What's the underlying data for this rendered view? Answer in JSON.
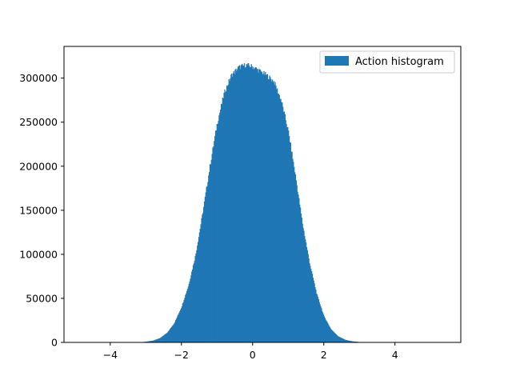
{
  "chart_data": {
    "type": "bar",
    "title": "",
    "xlabel": "",
    "ylabel": "",
    "xlim": [
      -5.3,
      5.85
    ],
    "ylim": [
      0,
      336000
    ],
    "x_ticks": [
      -4,
      -2,
      0,
      2,
      4
    ],
    "x_tick_labels": [
      "−4",
      "−2",
      "0",
      "2",
      "4"
    ],
    "y_ticks": [
      0,
      50000,
      100000,
      150000,
      200000,
      250000,
      300000
    ],
    "y_tick_labels": [
      "0",
      "50000",
      "100000",
      "150000",
      "200000",
      "250000",
      "300000"
    ],
    "grid": false,
    "legend_position": "top-right",
    "series": [
      {
        "name": "Action histogram",
        "color": "#1f77b4",
        "bin_range": [
          -3.2,
          3.3
        ],
        "profile": [
          {
            "x": -3.2,
            "y": 0
          },
          {
            "x": -3.0,
            "y": 800
          },
          {
            "x": -2.8,
            "y": 2000
          },
          {
            "x": -2.6,
            "y": 5000
          },
          {
            "x": -2.4,
            "y": 11000
          },
          {
            "x": -2.2,
            "y": 22000
          },
          {
            "x": -2.0,
            "y": 40000
          },
          {
            "x": -1.8,
            "y": 65000
          },
          {
            "x": -1.6,
            "y": 100000
          },
          {
            "x": -1.4,
            "y": 148000
          },
          {
            "x": -1.2,
            "y": 200000
          },
          {
            "x": -1.0,
            "y": 248000
          },
          {
            "x": -0.8,
            "y": 283000
          },
          {
            "x": -0.6,
            "y": 303000
          },
          {
            "x": -0.4,
            "y": 312000
          },
          {
            "x": -0.2,
            "y": 315000
          },
          {
            "x": 0.0,
            "y": 313000
          },
          {
            "x": 0.2,
            "y": 308000
          },
          {
            "x": 0.4,
            "y": 303000
          },
          {
            "x": 0.6,
            "y": 296000
          },
          {
            "x": 0.8,
            "y": 275000
          },
          {
            "x": 1.0,
            "y": 240000
          },
          {
            "x": 1.2,
            "y": 190000
          },
          {
            "x": 1.4,
            "y": 135000
          },
          {
            "x": 1.6,
            "y": 90000
          },
          {
            "x": 1.8,
            "y": 55000
          },
          {
            "x": 2.0,
            "y": 30000
          },
          {
            "x": 2.2,
            "y": 15000
          },
          {
            "x": 2.4,
            "y": 7000
          },
          {
            "x": 2.6,
            "y": 3000
          },
          {
            "x": 2.8,
            "y": 1200
          },
          {
            "x": 3.0,
            "y": 400
          },
          {
            "x": 3.3,
            "y": 0
          }
        ]
      }
    ]
  }
}
